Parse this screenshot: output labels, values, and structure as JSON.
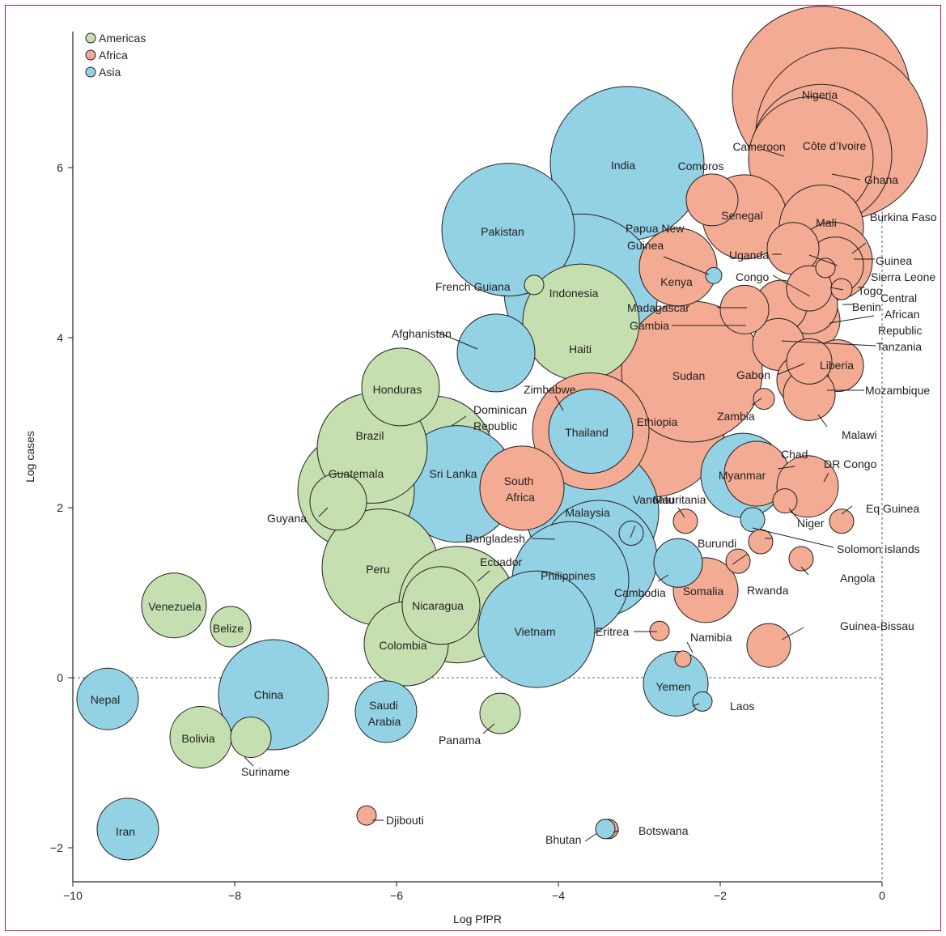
{
  "chart_data": {
    "type": "scatter",
    "xlabel": "Log PfPR",
    "ylabel": "Log cases",
    "xlim": [
      -10,
      0
    ],
    "ylim": [
      -2.4,
      7.6
    ],
    "xticks": [
      -10,
      -8,
      -6,
      -4,
      -2,
      0
    ],
    "yticks": [
      -2,
      0,
      2,
      4,
      6
    ],
    "reference_lines": {
      "x": 0,
      "y": 0,
      "style": "dashed"
    },
    "legend": {
      "position": "top-left"
    },
    "grid": false,
    "series": [
      {
        "name": "Americas",
        "color": "#c6dfb0"
      },
      {
        "name": "Africa",
        "color": "#f4ab93"
      },
      {
        "name": "Asia",
        "color": "#93d1e4"
      }
    ],
    "points": [
      {
        "name": "Nigeria",
        "region": "Africa",
        "x": -0.75,
        "y": 6.85,
        "r": 1.1
      },
      {
        "name": "Côte d'Ivoire",
        "region": "Africa",
        "x": -0.5,
        "y": 6.4,
        "r": 1.06
      },
      {
        "name": "Ghana",
        "region": "Africa",
        "x": -0.75,
        "y": 6.15,
        "r": 0.87
      },
      {
        "name": "Cameroon",
        "region": "Africa",
        "x": -0.88,
        "y": 6.1,
        "r": 0.77
      },
      {
        "name": "India",
        "region": "Asia",
        "x": -3.15,
        "y": 6.05,
        "r": 0.95
      },
      {
        "name": "Comoros",
        "region": "Africa",
        "x": -2.1,
        "y": 5.62,
        "r": 0.32
      },
      {
        "name": "Senegal",
        "region": "Africa",
        "x": -1.7,
        "y": 5.42,
        "r": 0.52
      },
      {
        "name": "Mali",
        "region": "Africa",
        "x": -0.75,
        "y": 5.3,
        "r": 0.52
      },
      {
        "name": "Pakistan",
        "region": "Asia",
        "x": -4.62,
        "y": 5.27,
        "r": 0.82
      },
      {
        "name": "Burkina Faso",
        "region": "Africa",
        "x": -0.6,
        "y": 4.9,
        "r": 0.48
      },
      {
        "name": "Uganda",
        "region": "Africa",
        "x": -1.1,
        "y": 5.05,
        "r": 0.32
      },
      {
        "name": "Kenya",
        "region": "Africa",
        "x": -2.52,
        "y": 4.83,
        "r": 0.48
      },
      {
        "name": "Papua New Guinea",
        "region": "Asia",
        "x": -2.08,
        "y": 4.73,
        "r": 0.1
      },
      {
        "name": "Guinea",
        "region": "Africa",
        "x": -0.58,
        "y": 4.85,
        "r": 0.35
      },
      {
        "name": "Sierra Leone",
        "region": "Africa",
        "x": -0.7,
        "y": 4.82,
        "r": 0.12
      },
      {
        "name": "Congo",
        "region": "Africa",
        "x": -0.9,
        "y": 4.58,
        "r": 0.28
      },
      {
        "name": "Togo",
        "region": "Africa",
        "x": -0.5,
        "y": 4.57,
        "r": 0.13
      },
      {
        "name": "Indonesia",
        "region": "Asia",
        "x": -3.72,
        "y": 4.55,
        "r": 0.95
      },
      {
        "name": "French Guiana",
        "region": "Americas",
        "x": -4.3,
        "y": 4.62,
        "r": 0.12
      },
      {
        "name": "Madagascar",
        "region": "Africa",
        "x": -1.25,
        "y": 4.37,
        "r": 0.32
      },
      {
        "name": "Benin",
        "region": "Africa",
        "x": -0.9,
        "y": 4.38,
        "r": 0.35
      },
      {
        "name": "Gambia",
        "region": "Africa",
        "x": -1.7,
        "y": 4.33,
        "r": 0.3
      },
      {
        "name": "Central African Republic",
        "region": "Africa",
        "x": -0.9,
        "y": 4.2,
        "r": 0.38
      },
      {
        "name": "Haiti",
        "region": "Americas",
        "x": -3.72,
        "y": 4.18,
        "r": 0.72
      },
      {
        "name": "Afghanistan",
        "region": "Asia",
        "x": -4.77,
        "y": 3.82,
        "r": 0.48
      },
      {
        "name": "Tanzania",
        "region": "Africa",
        "x": -1.28,
        "y": 3.92,
        "r": 0.32
      },
      {
        "name": "Gabon",
        "region": "Africa",
        "x": -0.9,
        "y": 3.72,
        "r": 0.28
      },
      {
        "name": "Liberia",
        "region": "Africa",
        "x": -0.55,
        "y": 3.67,
        "r": 0.32
      },
      {
        "name": "Sudan",
        "region": "Africa",
        "x": -2.35,
        "y": 3.6,
        "r": 0.87
      },
      {
        "name": "Mozambique",
        "region": "Africa",
        "x": -0.98,
        "y": 3.5,
        "r": 0.32
      },
      {
        "name": "Honduras",
        "region": "Americas",
        "x": -5.95,
        "y": 3.42,
        "r": 0.48
      },
      {
        "name": "Malawi",
        "region": "Africa",
        "x": -0.9,
        "y": 3.33,
        "r": 0.32
      },
      {
        "name": "Zambia",
        "region": "Africa",
        "x": -1.46,
        "y": 3.28,
        "r": 0.13
      },
      {
        "name": "Ethiopia",
        "region": "Africa",
        "x": -2.86,
        "y": 3.0,
        "r": 0.92
      },
      {
        "name": "Zimbabwe",
        "region": "Africa",
        "x": -3.6,
        "y": 2.9,
        "r": 0.72
      },
      {
        "name": "Thailand",
        "region": "Asia",
        "x": -3.6,
        "y": 2.9,
        "r": 0.52
      },
      {
        "name": "Brazil",
        "region": "Americas",
        "x": -6.3,
        "y": 2.7,
        "r": 0.68
      },
      {
        "name": "Dominican Republic",
        "region": "Americas",
        "x": -5.55,
        "y": 2.6,
        "r": 0.75
      },
      {
        "name": "Sri Lanka",
        "region": "Asia",
        "x": -5.25,
        "y": 2.28,
        "r": 0.72
      },
      {
        "name": "South Africa",
        "region": "Africa",
        "x": -4.45,
        "y": 2.23,
        "r": 0.52
      },
      {
        "name": "Guatemala",
        "region": "Americas",
        "x": -6.5,
        "y": 2.2,
        "r": 0.72
      },
      {
        "name": "Guyana",
        "region": "Americas",
        "x": -6.72,
        "y": 2.07,
        "r": 0.35
      },
      {
        "name": "Myanmar",
        "region": "Asia",
        "x": -1.72,
        "y": 2.38,
        "r": 0.52
      },
      {
        "name": "Chad",
        "region": "Africa",
        "x": -1.55,
        "y": 2.4,
        "r": 0.4
      },
      {
        "name": "DR Congo",
        "region": "Africa",
        "x": -0.92,
        "y": 2.25,
        "r": 0.38
      },
      {
        "name": "Niger",
        "region": "Africa",
        "x": -1.2,
        "y": 2.08,
        "r": 0.15
      },
      {
        "name": "Mauritania",
        "region": "Africa",
        "x": -2.43,
        "y": 1.84,
        "r": 0.15
      },
      {
        "name": "Eq Guinea",
        "region": "Africa",
        "x": -0.5,
        "y": 1.84,
        "r": 0.15
      },
      {
        "name": "Malaysia",
        "region": "Asia",
        "x": -3.58,
        "y": 1.95,
        "r": 0.82
      },
      {
        "name": "Solomon islands",
        "region": "Asia",
        "x": -1.6,
        "y": 1.86,
        "r": 0.15
      },
      {
        "name": "Vanuatu",
        "region": "Asia",
        "x": -3.1,
        "y": 1.7,
        "r": 0.15
      },
      {
        "name": "Bangladesh",
        "region": "Asia",
        "x": -3.5,
        "y": 1.4,
        "r": 0.72
      },
      {
        "name": "Burundi",
        "region": "Africa",
        "x": -1.5,
        "y": 1.6,
        "r": 0.15
      },
      {
        "name": "Rwanda",
        "region": "Africa",
        "x": -1.78,
        "y": 1.37,
        "r": 0.15
      },
      {
        "name": "Angola",
        "region": "Africa",
        "x": -1.0,
        "y": 1.4,
        "r": 0.15
      },
      {
        "name": "Peru",
        "region": "Americas",
        "x": -6.2,
        "y": 1.3,
        "r": 0.72
      },
      {
        "name": "Cambodia",
        "region": "Asia",
        "x": -2.52,
        "y": 1.35,
        "r": 0.3
      },
      {
        "name": "Philippines",
        "region": "Asia",
        "x": -3.85,
        "y": 1.15,
        "r": 0.72
      },
      {
        "name": "Somalia",
        "region": "Africa",
        "x": -2.18,
        "y": 1.03,
        "r": 0.4
      },
      {
        "name": "Ecuador",
        "region": "Americas",
        "x": -5.25,
        "y": 0.86,
        "r": 0.72
      },
      {
        "name": "Nicaragua",
        "region": "Americas",
        "x": -5.45,
        "y": 0.85,
        "r": 0.48
      },
      {
        "name": "Venezuela",
        "region": "Americas",
        "x": -8.75,
        "y": 0.85,
        "r": 0.4
      },
      {
        "name": "Belize",
        "region": "Americas",
        "x": -8.05,
        "y": 0.6,
        "r": 0.25
      },
      {
        "name": "Colombia",
        "region": "Americas",
        "x": -5.88,
        "y": 0.4,
        "r": 0.52
      },
      {
        "name": "Vietnam",
        "region": "Asia",
        "x": -4.27,
        "y": 0.57,
        "r": 0.72
      },
      {
        "name": "Eritrea",
        "region": "Africa",
        "x": -2.75,
        "y": 0.55,
        "r": 0.12
      },
      {
        "name": "Guinea-Bissau",
        "region": "Africa",
        "x": -1.4,
        "y": 0.38,
        "r": 0.27
      },
      {
        "name": "Namibia",
        "region": "Africa",
        "x": -2.46,
        "y": 0.22,
        "r": 0.1
      },
      {
        "name": "Yemen",
        "region": "Asia",
        "x": -2.55,
        "y": -0.07,
        "r": 0.4
      },
      {
        "name": "Laos",
        "region": "Asia",
        "x": -2.22,
        "y": -0.28,
        "r": 0.12
      },
      {
        "name": "Nepal",
        "region": "Asia",
        "x": -9.57,
        "y": -0.25,
        "r": 0.38
      },
      {
        "name": "China",
        "region": "Asia",
        "x": -7.52,
        "y": -0.2,
        "r": 0.68
      },
      {
        "name": "Saudi Arabia",
        "region": "Asia",
        "x": -6.13,
        "y": -0.4,
        "r": 0.38
      },
      {
        "name": "Panama",
        "region": "Americas",
        "x": -4.72,
        "y": -0.42,
        "r": 0.25
      },
      {
        "name": "Bolivia",
        "region": "Americas",
        "x": -8.42,
        "y": -0.7,
        "r": 0.38
      },
      {
        "name": "Suriname",
        "region": "Americas",
        "x": -7.8,
        "y": -0.7,
        "r": 0.25
      },
      {
        "name": "Iran",
        "region": "Asia",
        "x": -9.32,
        "y": -1.78,
        "r": 0.38
      },
      {
        "name": "Djibouti",
        "region": "Africa",
        "x": -6.37,
        "y": -1.62,
        "r": 0.12
      },
      {
        "name": "Botswana",
        "region": "Africa",
        "x": -3.38,
        "y": -1.78,
        "r": 0.12
      },
      {
        "name": "Bhutan",
        "region": "Asia",
        "x": -3.42,
        "y": -1.78,
        "r": 0.12
      }
    ]
  },
  "labels": [
    {
      "text": "Nigeria",
      "name": "Nigeria"
    },
    {
      "text": "Côte d’Ivoire",
      "name": "Côte d'Ivoire"
    },
    {
      "text": "Cameroon",
      "name": "Cameroon"
    },
    {
      "text": "Ghana",
      "name": "Ghana"
    },
    {
      "text": "India",
      "name": "India"
    },
    {
      "text": "Comoros",
      "name": "Comoros"
    },
    {
      "text": "Senegal",
      "name": "Senegal"
    },
    {
      "text": "Mali",
      "name": "Mali"
    },
    {
      "text": "Burkina Faso",
      "name": "Burkina Faso"
    },
    {
      "text": "Pakistan",
      "name": "Pakistan"
    },
    {
      "text": "Papua New",
      "name": "Papua New Guinea"
    },
    {
      "text": "Guinea",
      "name": "Papua New Guinea"
    },
    {
      "text": "Uganda",
      "name": "Uganda"
    },
    {
      "text": "Guinea",
      "name": "Guinea"
    },
    {
      "text": "Sierra Leone",
      "name": "Sierra Leone"
    },
    {
      "text": "Kenya",
      "name": "Kenya"
    },
    {
      "text": "Congo",
      "name": "Congo"
    },
    {
      "text": "Togo",
      "name": "Togo"
    },
    {
      "text": "French Guiana",
      "name": "French Guiana"
    },
    {
      "text": "Indonesia",
      "name": "Indonesia"
    },
    {
      "text": "Central",
      "name": "Central African Republic"
    },
    {
      "text": "Madagascar",
      "name": "Madagascar"
    },
    {
      "text": "Benin",
      "name": "Benin"
    },
    {
      "text": "African",
      "name": "Central African Republic"
    },
    {
      "text": "Gambia",
      "name": "Gambia"
    },
    {
      "text": "Republic",
      "name": "Central African Republic"
    },
    {
      "text": "Afghanistan",
      "name": "Afghanistan"
    },
    {
      "text": "Tanzania",
      "name": "Tanzania"
    },
    {
      "text": "Haiti",
      "name": "Haiti"
    },
    {
      "text": "Gabon",
      "name": "Gabon"
    },
    {
      "text": "Liberia",
      "name": "Liberia"
    },
    {
      "text": "Sudan",
      "name": "Sudan"
    },
    {
      "text": "Honduras",
      "name": "Honduras"
    },
    {
      "text": "Mozambique",
      "name": "Mozambique"
    },
    {
      "text": "Zimbabwe",
      "name": "Zimbabwe"
    },
    {
      "text": "Dominican",
      "name": "Dominican Republic"
    },
    {
      "text": "Ethiopia",
      "name": "Ethiopia"
    },
    {
      "text": "Zambia",
      "name": "Zambia"
    },
    {
      "text": "Republic",
      "name": "Dominican Republic"
    },
    {
      "text": "Brazil",
      "name": "Brazil"
    },
    {
      "text": "Thailand",
      "name": "Thailand"
    },
    {
      "text": "Malawi",
      "name": "Malawi"
    },
    {
      "text": "Chad",
      "name": "Chad"
    },
    {
      "text": "DR Congo",
      "name": "DR Congo"
    },
    {
      "text": "Sri Lanka",
      "name": "Sri Lanka"
    },
    {
      "text": "Guatemala",
      "name": "Guatemala"
    },
    {
      "text": "South",
      "name": "South Africa"
    },
    {
      "text": "Myanmar",
      "name": "Myanmar"
    },
    {
      "text": "Vanuatu",
      "name": "Vanuatu"
    },
    {
      "text": "Mauritania",
      "name": "Mauritania"
    },
    {
      "text": "Africa",
      "name": "South Africa"
    },
    {
      "text": "Eq Guinea",
      "name": "Eq Guinea"
    },
    {
      "text": "Guyana",
      "name": "Guyana"
    },
    {
      "text": "Malaysia",
      "name": "Malaysia"
    },
    {
      "text": "Niger",
      "name": "Niger"
    },
    {
      "text": "Bangladesh",
      "name": "Bangladesh"
    },
    {
      "text": "Burundi",
      "name": "Burundi"
    },
    {
      "text": "Solomon islands",
      "name": "Solomon islands"
    },
    {
      "text": "Ecuador",
      "name": "Ecuador"
    },
    {
      "text": "Peru",
      "name": "Peru"
    },
    {
      "text": "Philippines",
      "name": "Philippines"
    },
    {
      "text": "Angola",
      "name": "Angola"
    },
    {
      "text": "Somalia",
      "name": "Somalia"
    },
    {
      "text": "Rwanda",
      "name": "Rwanda"
    },
    {
      "text": "Cambodia",
      "name": "Cambodia"
    },
    {
      "text": "Nicaragua",
      "name": "Nicaragua"
    },
    {
      "text": "Venezuela",
      "name": "Venezuela"
    },
    {
      "text": "Belize",
      "name": "Belize"
    },
    {
      "text": "Vietnam",
      "name": "Vietnam"
    },
    {
      "text": "Eritrea",
      "name": "Eritrea"
    },
    {
      "text": "Guinea-Bissau",
      "name": "Guinea-Bissau"
    },
    {
      "text": "Colombia",
      "name": "Colombia"
    },
    {
      "text": "Namibia",
      "name": "Namibia"
    },
    {
      "text": "Yemen",
      "name": "Yemen"
    },
    {
      "text": "Nepal",
      "name": "Nepal"
    },
    {
      "text": "China",
      "name": "China"
    },
    {
      "text": "Saudi",
      "name": "Saudi Arabia"
    },
    {
      "text": "Laos",
      "name": "Laos"
    },
    {
      "text": "Arabia",
      "name": "Saudi Arabia"
    },
    {
      "text": "Bolivia",
      "name": "Bolivia"
    },
    {
      "text": "Panama",
      "name": "Panama"
    },
    {
      "text": "Suriname",
      "name": "Suriname"
    },
    {
      "text": "Djibouti",
      "name": "Djibouti"
    },
    {
      "text": "Iran",
      "name": "Iran"
    },
    {
      "text": "Botswana",
      "name": "Botswana"
    },
    {
      "text": "Bhutan",
      "name": "Bhutan"
    }
  ],
  "style": {
    "outline": "#231f20",
    "axis": "#231f20",
    "reference_line": "#4a6a7a",
    "frame": "#c2185b"
  }
}
